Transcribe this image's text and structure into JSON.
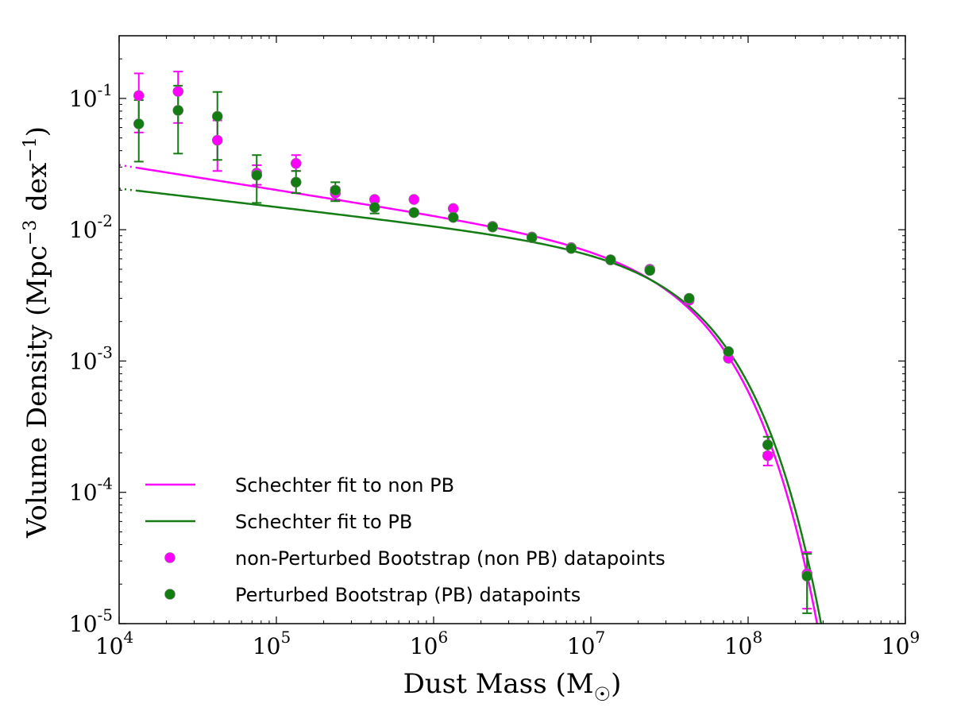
{
  "chart_data": {
    "type": "scatter",
    "x_scale": "log",
    "y_scale": "log",
    "xlim": [
      10000,
      1000000000
    ],
    "ylim": [
      1e-05,
      0.3
    ],
    "xlabel": "Dust Mass (M",
    "xlabel_sub": "☉",
    "xlabel_end": ")",
    "ylabel_parts": [
      "Volume Density (Mpc",
      "−3",
      " dex",
      "−1",
      ")"
    ],
    "x_ticks": [
      {
        "value": 10000,
        "base": "10",
        "exp": "4"
      },
      {
        "value": 100000,
        "base": "10",
        "exp": "5"
      },
      {
        "value": 1000000,
        "base": "10",
        "exp": "6"
      },
      {
        "value": 10000000,
        "base": "10",
        "exp": "7"
      },
      {
        "value": 100000000,
        "base": "10",
        "exp": "8"
      },
      {
        "value": 1000000000,
        "base": "10",
        "exp": "9"
      }
    ],
    "y_ticks": [
      {
        "value": 0.1,
        "base": "10",
        "exp": "-1"
      },
      {
        "value": 0.01,
        "base": "10",
        "exp": "-2"
      },
      {
        "value": 0.001,
        "base": "10",
        "exp": "-3"
      },
      {
        "value": 0.0001,
        "base": "10",
        "exp": "-4"
      },
      {
        "value": 1e-05,
        "base": "10",
        "exp": "-5"
      }
    ],
    "series": [
      {
        "name": "non-Perturbed Bootstrap (non PB) datapoints",
        "color": "#ff00ff",
        "x": [
          13335,
          23714,
          42170,
          74989,
          133352,
          237137,
          421696,
          749894,
          1333521,
          2371374,
          4216965,
          7498942,
          13335214,
          23713737,
          42169650,
          74989421,
          133352143,
          237137371
        ],
        "y": [
          0.105,
          0.113,
          0.048,
          0.027,
          0.032,
          0.019,
          0.017,
          0.017,
          0.0145,
          0.0106,
          0.0088,
          0.0073,
          0.0059,
          0.005,
          0.0029,
          0.00105,
          0.00019,
          2.4e-05
        ],
        "yerr_lo": [
          0.055,
          0.065,
          0.028,
          0.022,
          0.028,
          0.017,
          null,
          null,
          null,
          null,
          null,
          null,
          null,
          null,
          null,
          null,
          0.00016,
          1.3e-05
        ],
        "yerr_hi": [
          0.155,
          0.16,
          0.068,
          0.031,
          0.037,
          0.021,
          null,
          null,
          null,
          null,
          null,
          null,
          null,
          null,
          null,
          null,
          0.00023,
          3.5e-05
        ]
      },
      {
        "name": "Perturbed Bootstrap (PB) datapoints",
        "color": "#137c13",
        "x": [
          13335,
          23714,
          42170,
          74989,
          133352,
          237137,
          421696,
          749894,
          1333521,
          2371374,
          4216965,
          7498942,
          13335214,
          23713737,
          42169650,
          74989421,
          133352143,
          237137371
        ],
        "y": [
          0.064,
          0.081,
          0.073,
          0.026,
          0.023,
          0.02,
          0.0148,
          0.0135,
          0.0124,
          0.0105,
          0.0087,
          0.0072,
          0.0059,
          0.0049,
          0.003,
          0.00118,
          0.00023,
          2.3e-05
        ],
        "yerr_lo": [
          0.033,
          0.038,
          0.034,
          0.016,
          0.019,
          0.0165,
          0.0133,
          null,
          null,
          null,
          null,
          null,
          null,
          null,
          null,
          null,
          0.0002,
          1.2e-05
        ],
        "yerr_hi": [
          0.097,
          0.125,
          0.112,
          0.037,
          0.028,
          0.023,
          0.0163,
          null,
          null,
          null,
          null,
          null,
          null,
          null,
          null,
          null,
          0.000265,
          3.4e-05
        ]
      }
    ],
    "fits": [
      {
        "name": "Schechter fit to non PB",
        "color": "#ff00ff",
        "phi_star": 0.0063,
        "m_star": 45000000,
        "alpha": -1.19,
        "x_start": 13000,
        "x_end": 300000000,
        "dotted_from": 10000
      },
      {
        "name": "Schechter fit to PB",
        "color": "#137c13",
        "phi_star": 0.0063,
        "m_star": 47000000,
        "alpha": -1.14,
        "x_start": 13000,
        "x_end": 300000000,
        "dotted_from": 10000
      }
    ],
    "legend": {
      "placement": "lower-left",
      "entries": [
        {
          "label": "Schechter fit to non PB",
          "kind": "line",
          "color": "#ff00ff"
        },
        {
          "label": "Schechter fit to PB",
          "kind": "line",
          "color": "#137c13"
        },
        {
          "label": "non-Perturbed Bootstrap (non PB) datapoints",
          "kind": "marker",
          "color": "#ff00ff"
        },
        {
          "label": "Perturbed Bootstrap (PB) datapoints",
          "kind": "marker",
          "color": "#137c13"
        }
      ]
    }
  }
}
